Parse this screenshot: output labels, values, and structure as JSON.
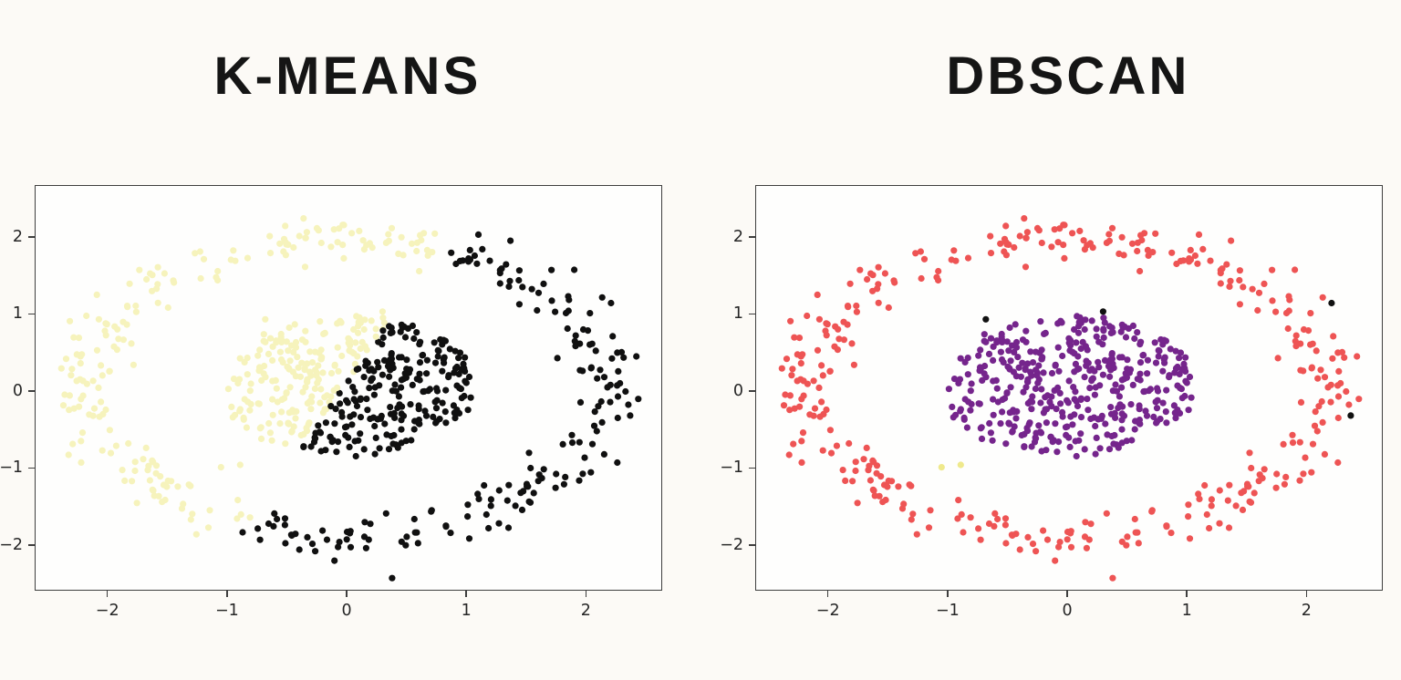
{
  "figure": {
    "background": "#FCFAF6"
  },
  "axes_style": {
    "plot_background": "#FEFEFD",
    "border_color": "#3E3E3E",
    "tick_color": "#3E3E3E",
    "tick_label_color": "#262626"
  },
  "chart_data": [
    {
      "type": "scatter",
      "title": "K-MEANS",
      "xlabel": "",
      "ylabel": "",
      "xlim": [
        -2.6,
        2.63
      ],
      "ylim": [
        -2.58,
        2.66
      ],
      "grid": false,
      "legend": "none",
      "x_tick_values": [
        -2,
        -1,
        0,
        1,
        2
      ],
      "x_tick_labels": [
        "−2",
        "−1",
        "0",
        "1",
        "2"
      ],
      "y_tick_values": [
        2,
        1,
        0,
        -1,
        -2
      ],
      "y_tick_labels": [
        "2",
        "1",
        "0",
        "−1",
        "−2"
      ],
      "clusters": [
        {
          "name": "kmeans-cluster-left",
          "color": "#F6F3BC"
        },
        {
          "name": "kmeans-cluster-right",
          "color": "#101010"
        }
      ],
      "assignment": {
        "rule": "point belongs to the black cluster when x - 0.45*y + 0.05 > 0, otherwise the pale-yellow cluster (linear k-means boundary cutting both the ring and the inner blob)",
        "x_coef": 1,
        "y_coef": -0.45,
        "offset": 0.05
      },
      "points": "shared_points"
    },
    {
      "type": "scatter",
      "title": "DBSCAN",
      "xlabel": "",
      "ylabel": "",
      "xlim": [
        -2.6,
        2.63
      ],
      "ylim": [
        -2.58,
        2.66
      ],
      "grid": false,
      "legend": "none",
      "x_tick_values": [
        -2,
        -1,
        0,
        1,
        2
      ],
      "x_tick_labels": [
        "−2",
        "−1",
        "0",
        "1",
        "2"
      ],
      "y_tick_values": [
        2,
        1,
        0,
        -1,
        -2
      ],
      "y_tick_labels": [
        "2",
        "1",
        "0",
        "−1",
        "−2"
      ],
      "clusters": [
        {
          "name": "dbscan-outer-ring",
          "group": "ring",
          "color": "#EE5454"
        },
        {
          "name": "dbscan-inner-blob",
          "group": "blob",
          "color": "#75258C"
        },
        {
          "name": "dbscan-small-cluster",
          "group": "small",
          "color": "#EFE98C"
        },
        {
          "name": "dbscan-noise",
          "group": "noise",
          "color": "#111111"
        }
      ],
      "points": "shared_points"
    }
  ],
  "shared_points": {
    "description": "Same two-dimensional dataset shown in both panels: a noisy outer ring (~360 points) around a dense inner blob (~420 points), plus a few isolated noise points. K-Means splits it with a straight line; DBSCAN separates ring vs blob.",
    "marker_radius_px": 3.6,
    "generator": {
      "seed": 42,
      "ring": {
        "count": 360,
        "base_radius": 2.02,
        "radius_noise_sd": 0.15,
        "x_scale": 1.08,
        "y_scale": 0.96,
        "center": [
          0,
          0.05
        ]
      },
      "blob": {
        "count": 420,
        "center": [
          0.03,
          0.07
        ],
        "x_radius": 1.06,
        "y_radius": 0.92,
        "edge_jitter_sd": 0.03
      }
    },
    "noise_points": [
      [
        -0.68,
        0.93
      ],
      [
        0.3,
        1.03
      ],
      [
        2.21,
        1.14
      ],
      [
        2.37,
        -0.32
      ]
    ],
    "small_cluster_points": [
      [
        -1.05,
        -0.99
      ],
      [
        -0.89,
        -0.96
      ]
    ]
  }
}
